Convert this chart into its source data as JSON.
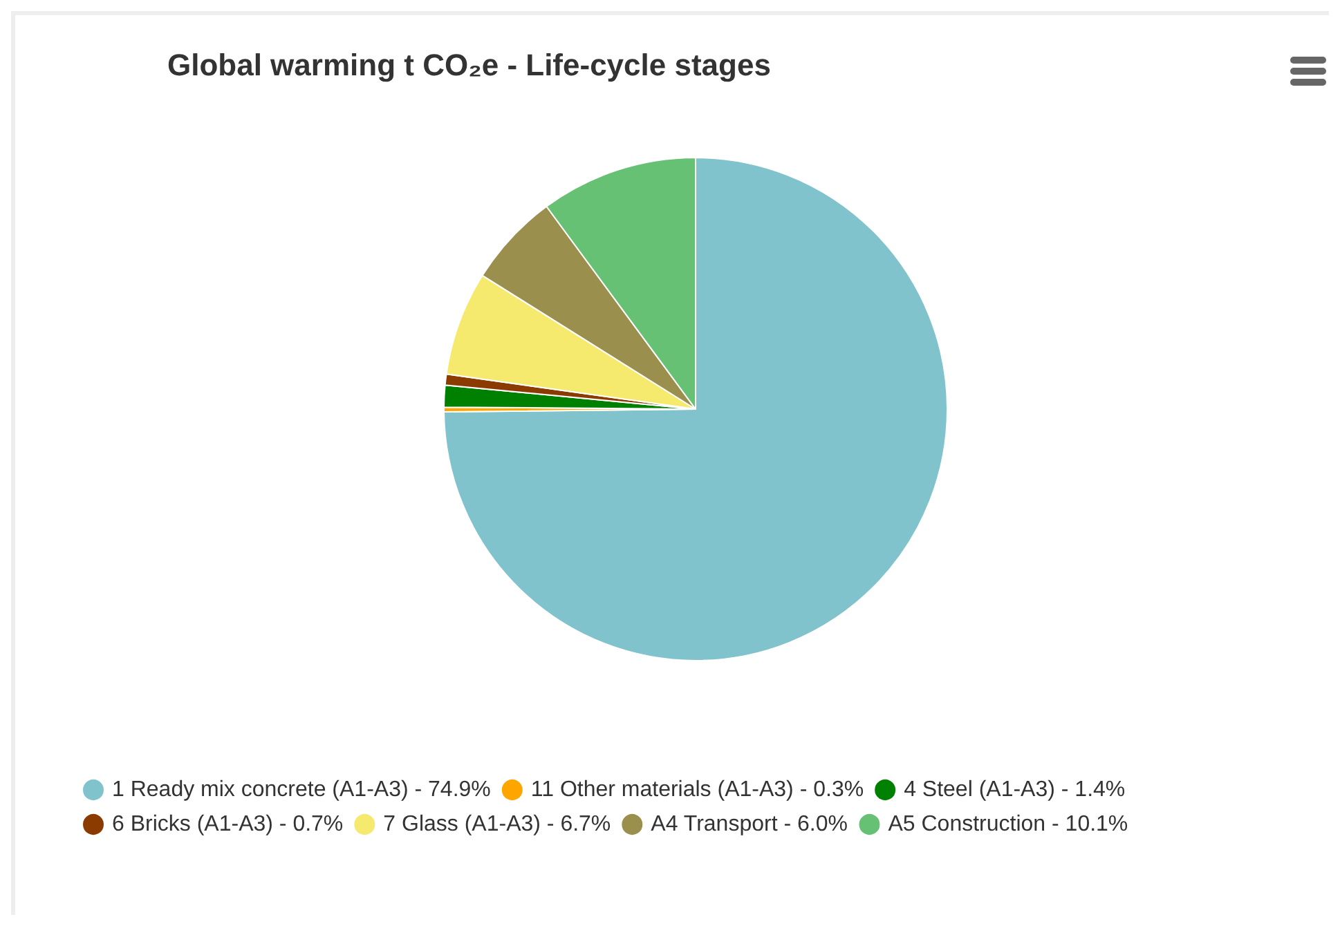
{
  "chart_data": {
    "type": "pie",
    "title": "Global warming t CO₂e - Life-cycle stages",
    "categories": [
      "1 Ready mix concrete (A1-A3) - 74.9%",
      "11 Other materials (A1-A3) - 0.3%",
      "4 Steel (A1-A3) - 1.4%",
      "6 Bricks (A1-A3) - 0.7%",
      "7 Glass (A1-A3) - 6.7%",
      "A4 Transport - 6.0%",
      "A5 Construction - 10.1%"
    ],
    "values": [
      74.9,
      0.3,
      1.4,
      0.7,
      6.7,
      6.0,
      10.1
    ],
    "colors": [
      "#80c3cc",
      "#ffa500",
      "#008000",
      "#8b3a00",
      "#f5e96e",
      "#9b8f4e",
      "#66c174"
    ],
    "legend": "bottom left"
  }
}
